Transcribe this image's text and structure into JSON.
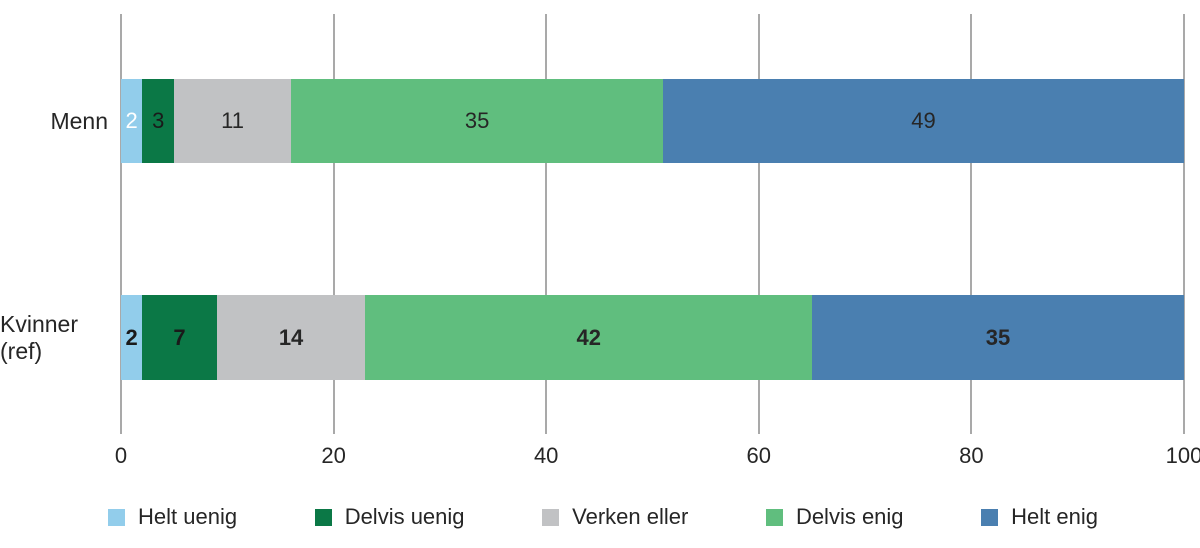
{
  "chart_data": {
    "type": "bar",
    "orientation": "horizontal",
    "stacked": true,
    "title": "",
    "xlabel": "",
    "ylabel": "",
    "xlim": [
      0,
      100
    ],
    "xticks": [
      0,
      20,
      40,
      60,
      80,
      100
    ],
    "grid": "vertical",
    "background": "#FFFFFF",
    "gridline_color": "#A9A9A9",
    "text_color": "#262626",
    "categories": [
      "Menn",
      "Kvinner (ref)"
    ],
    "legend_position": "bottom",
    "legend": [
      "Helt uenig",
      "Delvis uenig",
      "Verken eller",
      "Delvis enig",
      "Helt enig"
    ],
    "colors": [
      "#92CDEB",
      "#0B7846",
      "#C1C2C4",
      "#60BE7E",
      "#4A7FB0"
    ],
    "series": [
      {
        "name": "Helt uenig",
        "values": [
          2,
          2
        ]
      },
      {
        "name": "Delvis uenig",
        "values": [
          3,
          7
        ]
      },
      {
        "name": "Verken eller",
        "values": [
          11,
          14
        ]
      },
      {
        "name": "Delvis enig",
        "values": [
          35,
          42
        ]
      },
      {
        "name": "Helt enig",
        "values": [
          49,
          35
        ]
      }
    ],
    "row_styles": [
      {
        "category": "Menn",
        "value_weight": "normal",
        "label_colors": [
          "#FFFFFF",
          "#1A1A1A",
          "#262626",
          "#262626",
          "#262626"
        ]
      },
      {
        "category": "Kvinner (ref)",
        "value_weight": "bold",
        "label_colors": [
          "#1A1A1A",
          "#1A1A1A",
          "#262626",
          "#262626",
          "#262626"
        ]
      }
    ]
  }
}
